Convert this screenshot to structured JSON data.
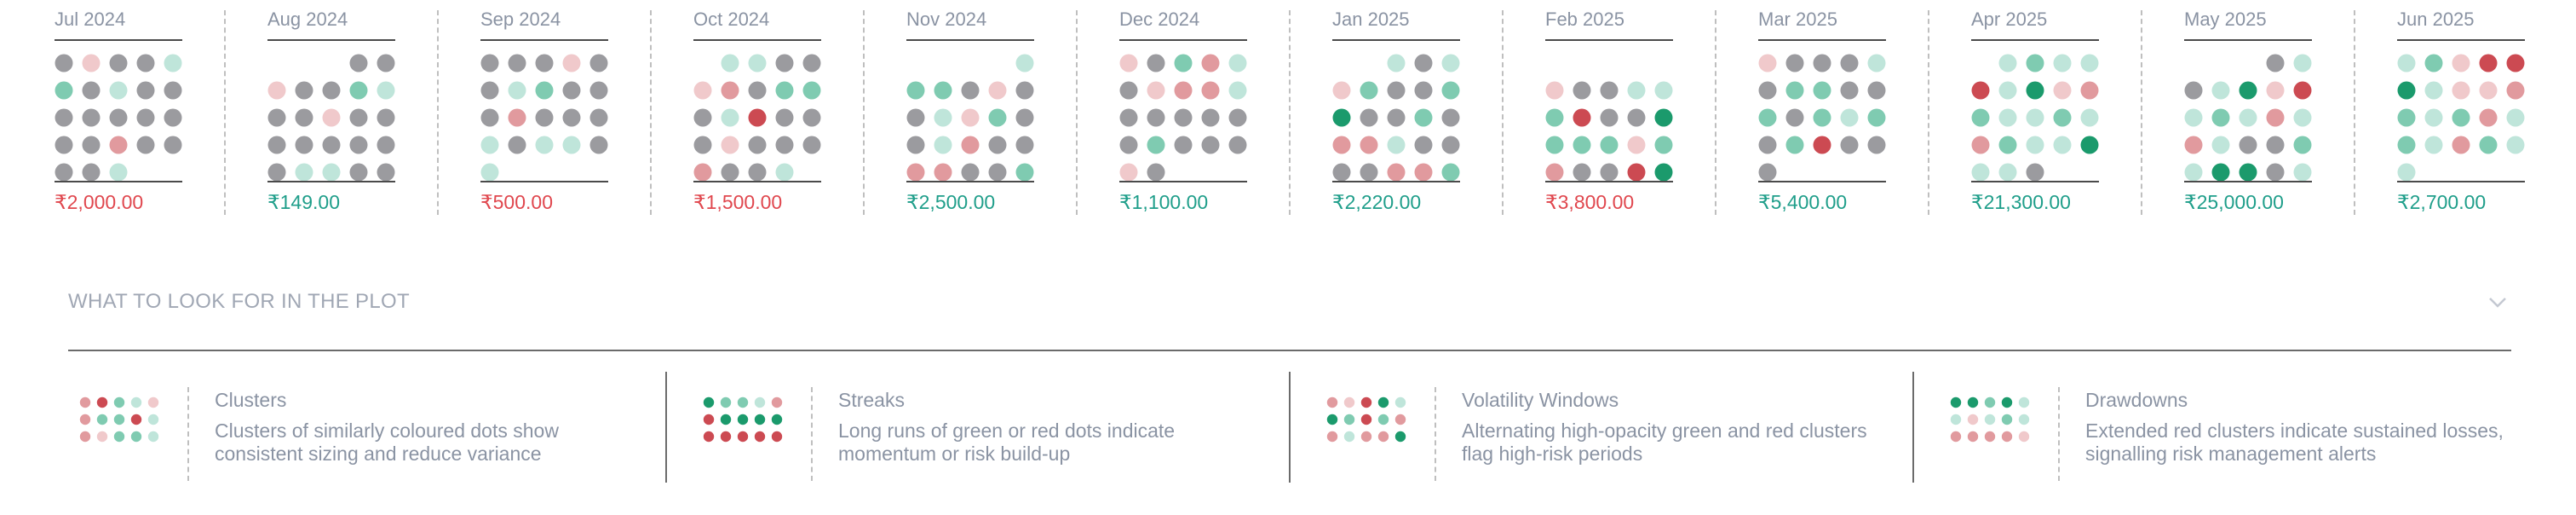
{
  "colors": {
    "gray": "#9b9b9f",
    "light_red": "#f0c9cb",
    "mid_red": "#e19a9e",
    "strong_red": "#cc4a52",
    "light_green": "#bfe5da",
    "mid_green": "#7fcbb1",
    "strong_green": "#1b9a6c",
    "amount_negative": "#e0474e",
    "amount_positive": "#1f9e8a"
  },
  "chart_data": {
    "type": "dot-matrix",
    "legend_codes": {
      "G": "neutral",
      "r": "light red",
      "R": "medium red",
      "D": "dark red",
      "l": "light green",
      "m": "medium green",
      "S": "dark green"
    },
    "months": [
      {
        "label": "Jul 2024",
        "amount": "₹2,000.00",
        "sign": "negative",
        "rows": [
          "GrGGl",
          "mGlGG",
          "GGGGG",
          "GGRGG",
          "GGl"
        ]
      },
      {
        "label": "Aug 2024",
        "amount": "₹149.00",
        "sign": "positive",
        "rows": [
          "___GG",
          "rGGml",
          "GGrGG",
          "GGGGG",
          "GllGG"
        ]
      },
      {
        "label": "Sep 2024",
        "amount": "₹500.00",
        "sign": "negative",
        "rows": [
          "GGGrG",
          "GlmGG",
          "GRGGG",
          "lGllG",
          "l"
        ]
      },
      {
        "label": "Oct 2024",
        "amount": "₹1,500.00",
        "sign": "negative",
        "rows": [
          "_llGG",
          "rRGmm",
          "GlDGG",
          "GrGGG",
          "RGGl"
        ]
      },
      {
        "label": "Nov 2024",
        "amount": "₹2,500.00",
        "sign": "positive",
        "rows": [
          "____l",
          "mmGrG",
          "GlrmG",
          "GlRGG",
          "RRGGm"
        ]
      },
      {
        "label": "Dec 2024",
        "amount": "₹1,100.00",
        "sign": "positive",
        "rows": [
          "rGmRl",
          "GrRRl",
          "GGGGG",
          "GmGGG",
          "rG"
        ]
      },
      {
        "label": "Jan 2025",
        "amount": "₹2,220.00",
        "sign": "positive",
        "rows": [
          "__lGl",
          "rmGGm",
          "SGGmG",
          "RRlGG",
          "GGRRm"
        ]
      },
      {
        "label": "Feb 2025",
        "amount": "₹3,800.00",
        "sign": "negative",
        "rows": [
          "_____",
          "rGGll",
          "mDGGS",
          "mmmrm",
          "RGGDS"
        ]
      },
      {
        "label": "Mar 2025",
        "amount": "₹5,400.00",
        "sign": "positive",
        "rows": [
          "rGGGl",
          "GmmGG",
          "mGmlm",
          "GmDGG",
          "G"
        ]
      },
      {
        "label": "Apr 2025",
        "amount": "₹21,300.00",
        "sign": "positive",
        "rows": [
          "_lmll",
          "DlSrR",
          "mllml",
          "RmllS",
          "llG"
        ]
      },
      {
        "label": "May 2025",
        "amount": "₹25,000.00",
        "sign": "positive",
        "rows": [
          "___Gl",
          "GlSrD",
          "lmlRl",
          "RlGGm",
          "lSSGl"
        ]
      },
      {
        "label": "Jun 2025",
        "amount": "₹2,700.00",
        "sign": "positive",
        "rows": [
          "lmrDD",
          "SlrrR",
          "mlmRl",
          "mlRml",
          "l"
        ]
      }
    ]
  },
  "guide": {
    "title": "WHAT TO LOOK FOR IN THE PLOT",
    "items": [
      {
        "title": "Clusters",
        "description": "Clusters of similarly coloured dots show consistent sizing and reduce variance",
        "icon": "clusters-dot-icon",
        "rows": [
          "RDmlr",
          "RmmDl",
          "Rrmml"
        ]
      },
      {
        "title": "Streaks",
        "description": "Long runs of green or red dots indicate momentum or risk build-up",
        "icon": "streaks-dot-icon",
        "rows": [
          "SmmlR",
          "DSSSS",
          "DDDDD"
        ]
      },
      {
        "title": "Volatility Windows",
        "description": "Alternating high-opacity green and red clusters flag high-risk periods",
        "icon": "volatility-dot-icon",
        "rows": [
          "RrDSl",
          "SmDmR",
          "RlRRS"
        ]
      },
      {
        "title": "Drawdowns",
        "description": "Extended red clusters indicate sustained losses, signalling risk management alerts",
        "icon": "drawdowns-dot-icon",
        "rows": [
          "SSmSl",
          "lrlml",
          "RRRRr"
        ]
      }
    ]
  }
}
